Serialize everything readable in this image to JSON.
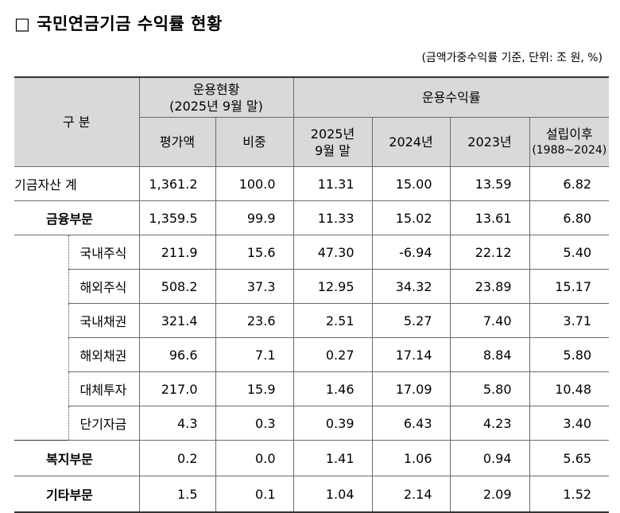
{
  "title": "□ 국민연금기금 수익률 현황",
  "unit_note": "(금액가중수익률 기준, 단위: 조 원, %)",
  "header": {
    "gubun": "구 분",
    "group1_line1": "운용현황",
    "group1_line2": "(2025년 9월 말)",
    "group2": "운용수익률",
    "col_value": "평가액",
    "col_share": "비중",
    "col_2025_line1": "2025년",
    "col_2025_line2": "9월 말",
    "col_2024": "2024년",
    "col_2023": "2023년",
    "col_since_line1": "설립이후",
    "col_since_line2": "(1988~2024)"
  },
  "rows": [
    {
      "label": "기금자산 계",
      "value": "1,361.2",
      "share": "100.0",
      "r2025": "11.31",
      "r2024": "15.00",
      "r2023": "13.59",
      "since": "6.82"
    },
    {
      "label": "금융부문",
      "value": "1,359.5",
      "share": "99.9",
      "r2025": "11.33",
      "r2024": "15.02",
      "r2023": "13.61",
      "since": "6.80"
    },
    {
      "label": "국내주식",
      "value": "211.9",
      "share": "15.6",
      "r2025": "47.30",
      "r2024": "-6.94",
      "r2023": "22.12",
      "since": "5.40"
    },
    {
      "label": "해외주식",
      "value": "508.2",
      "share": "37.3",
      "r2025": "12.95",
      "r2024": "34.32",
      "r2023": "23.89",
      "since": "15.17"
    },
    {
      "label": "국내채권",
      "value": "321.4",
      "share": "23.6",
      "r2025": "2.51",
      "r2024": "5.27",
      "r2023": "7.40",
      "since": "3.71"
    },
    {
      "label": "해외채권",
      "value": "96.6",
      "share": "7.1",
      "r2025": "0.27",
      "r2024": "17.14",
      "r2023": "8.84",
      "since": "5.80"
    },
    {
      "label": "대체투자",
      "value": "217.0",
      "share": "15.9",
      "r2025": "1.46",
      "r2024": "17.09",
      "r2023": "5.80",
      "since": "10.48"
    },
    {
      "label": "단기자금",
      "value": "4.3",
      "share": "0.3",
      "r2025": "0.39",
      "r2024": "6.43",
      "r2023": "4.23",
      "since": "3.40"
    },
    {
      "label": "복지부문",
      "value": "0.2",
      "share": "0.0",
      "r2025": "1.41",
      "r2024": "1.06",
      "r2023": "0.94",
      "since": "5.65"
    },
    {
      "label": "기타부문",
      "value": "1.5",
      "share": "0.1",
      "r2025": "1.04",
      "r2024": "2.14",
      "r2023": "2.09",
      "since": "1.52"
    }
  ]
}
